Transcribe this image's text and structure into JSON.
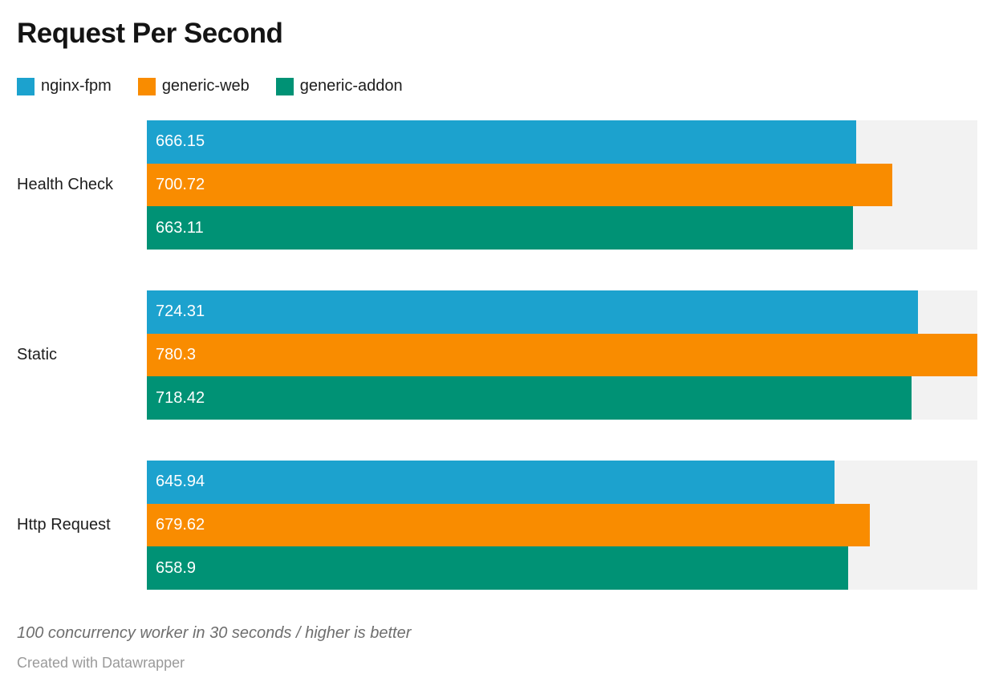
{
  "chart_data": {
    "type": "bar",
    "orientation": "horizontal",
    "title": "Request Per Second",
    "categories": [
      "Health Check",
      "Static",
      "Http Request"
    ],
    "series": [
      {
        "name": "nginx-fpm",
        "color": "#1ca2ce",
        "values": [
          666.15,
          724.31,
          645.94
        ]
      },
      {
        "name": "generic-web",
        "color": "#f98c00",
        "values": [
          700.72,
          780.3,
          679.62
        ]
      },
      {
        "name": "generic-addon",
        "color": "#009275",
        "values": [
          663.11,
          718.42,
          658.9
        ]
      }
    ],
    "xlim": [
      0,
      780.3
    ],
    "value_label_position": "inside-start",
    "value_label_color": "#ffffff",
    "track_color": "#f2f2f2",
    "legend_position": "top-left",
    "grid": false,
    "note": "100 concurrency worker in 30 seconds / higher is better",
    "attribution": "Created with Datawrapper"
  }
}
